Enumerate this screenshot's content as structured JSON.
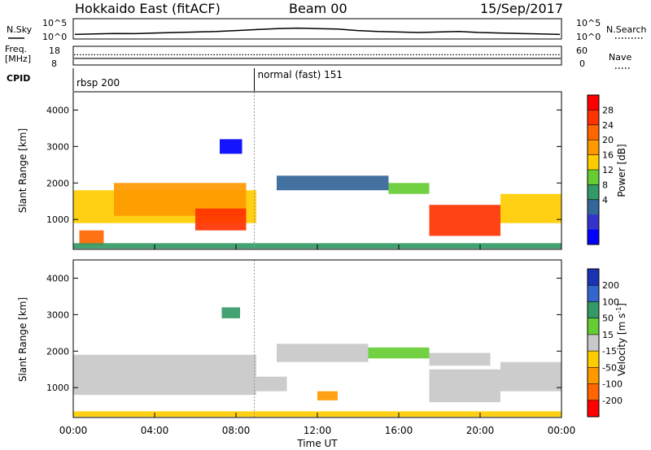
{
  "header": {
    "station": "Hokkaido East (fitACF)",
    "beam": "Beam 00",
    "date": "15/Sep/2017"
  },
  "top_panels": {
    "nsky_label": "N.Sky",
    "nsearch_label": "N.Search",
    "freq_label_line1": "Freq.",
    "freq_label_line2": "[MHz]",
    "nave_label": "Nave",
    "cpid_label": "CPID",
    "nsky_ticks": [
      "10^5",
      "10^0"
    ],
    "nsearch_ticks": [
      "10^5",
      "10^0"
    ],
    "freq_ticks": [
      "18",
      "8"
    ],
    "nave_ticks": [
      "60",
      "0"
    ],
    "cpid_segments": [
      {
        "label": "rbsp 200",
        "start_hour": 0
      },
      {
        "label": "normal (fast) 151",
        "start_hour": 8.9
      }
    ]
  },
  "colorbars": {
    "power": {
      "label": "Power [dB]",
      "ticks": [
        "28",
        "24",
        "20",
        "16",
        "12",
        "8",
        "4"
      ],
      "colors": [
        "#ff0000",
        "#ff3300",
        "#ff6600",
        "#ff9900",
        "#ffcc00",
        "#66cc33",
        "#339966",
        "#336699",
        "#3333cc",
        "#0000ff"
      ]
    },
    "velocity": {
      "label": "Velocity [m s",
      "label_sup": "-1",
      "label_end": "]",
      "ticks": [
        "200",
        "100",
        "50",
        "15",
        "-15",
        "-50",
        "-100",
        "-200"
      ],
      "colors": [
        "#1a33b3",
        "#3366cc",
        "#339966",
        "#66cc33",
        "#c8c8c8",
        "#ffcc00",
        "#ff9900",
        "#ff6600",
        "#ff0000"
      ]
    }
  },
  "chart_data": [
    {
      "type": "heatmap",
      "name_role": "power",
      "ylabel": "Slant Range [km]",
      "yticks": [
        1000,
        2000,
        3000,
        4000
      ],
      "ylim": [
        180,
        4500
      ],
      "xlim": [
        0,
        24
      ],
      "regions": [
        {
          "x0": 0.0,
          "x1": 9.0,
          "y0": 900,
          "y1": 1800,
          "val": 18
        },
        {
          "x0": 2.0,
          "x1": 8.5,
          "y0": 1100,
          "y1": 2000,
          "val": 22
        },
        {
          "x0": 6.0,
          "x1": 8.5,
          "y0": 700,
          "y1": 1300,
          "val": 28
        },
        {
          "x0": 0.3,
          "x1": 1.5,
          "y0": 300,
          "y1": 700,
          "val": 26
        },
        {
          "x0": 10.0,
          "x1": 15.5,
          "y0": 1800,
          "y1": 2200,
          "val": 12
        },
        {
          "x0": 15.5,
          "x1": 17.5,
          "y0": 1700,
          "y1": 2000,
          "val": 16
        },
        {
          "x0": 17.5,
          "x1": 21.0,
          "y0": 550,
          "y1": 1400,
          "val": 27
        },
        {
          "x0": 21.0,
          "x1": 24.0,
          "y0": 900,
          "y1": 1700,
          "val": 20
        },
        {
          "x0": 7.2,
          "x1": 8.3,
          "y0": 2800,
          "y1": 3200,
          "val": 6
        },
        {
          "x0": 0.0,
          "x1": 24.0,
          "y0": 200,
          "y1": 350,
          "val": 14
        }
      ]
    },
    {
      "type": "heatmap",
      "name_role": "velocity",
      "ylabel": "Slant Range [km]",
      "xlabel": "Time UT",
      "yticks": [
        1000,
        2000,
        3000,
        4000
      ],
      "ylim": [
        180,
        4500
      ],
      "xlim": [
        0,
        24
      ],
      "xticks": [
        "00:00",
        "04:00",
        "08:00",
        "12:00",
        "16:00",
        "20:00",
        "00:00"
      ],
      "regions": [
        {
          "x0": 0.0,
          "x1": 9.0,
          "y0": 800,
          "y1": 1900,
          "val": 0
        },
        {
          "x0": 9.0,
          "x1": 10.5,
          "y0": 900,
          "y1": 1300,
          "val": 0
        },
        {
          "x0": 10.0,
          "x1": 14.5,
          "y0": 1700,
          "y1": 2200,
          "val": 0
        },
        {
          "x0": 14.5,
          "x1": 17.5,
          "y0": 1800,
          "y1": 2100,
          "val": 30
        },
        {
          "x0": 17.5,
          "x1": 20.5,
          "y0": 1600,
          "y1": 1950,
          "val": 0
        },
        {
          "x0": 17.5,
          "x1": 21.0,
          "y0": 600,
          "y1": 1500,
          "val": 0
        },
        {
          "x0": 21.0,
          "x1": 24.0,
          "y0": 900,
          "y1": 1700,
          "val": 0
        },
        {
          "x0": 7.3,
          "x1": 8.2,
          "y0": 2900,
          "y1": 3200,
          "val": 60
        },
        {
          "x0": 0.0,
          "x1": 24.0,
          "y0": 200,
          "y1": 350,
          "val": -40
        },
        {
          "x0": 12.0,
          "x1": 13.0,
          "y0": 650,
          "y1": 900,
          "val": -60
        }
      ]
    }
  ],
  "series_lines": {
    "nsky": [
      0.3,
      0.35,
      0.4,
      0.38,
      0.45,
      0.5,
      0.55,
      0.6,
      0.7,
      0.8,
      0.9,
      0.95,
      0.9,
      0.85,
      0.7,
      0.6,
      0.55,
      0.5,
      0.55,
      0.6,
      0.5,
      0.45,
      0.4,
      0.35,
      0.3
    ],
    "freq_level": 0.35,
    "nave_level": 0.55
  }
}
